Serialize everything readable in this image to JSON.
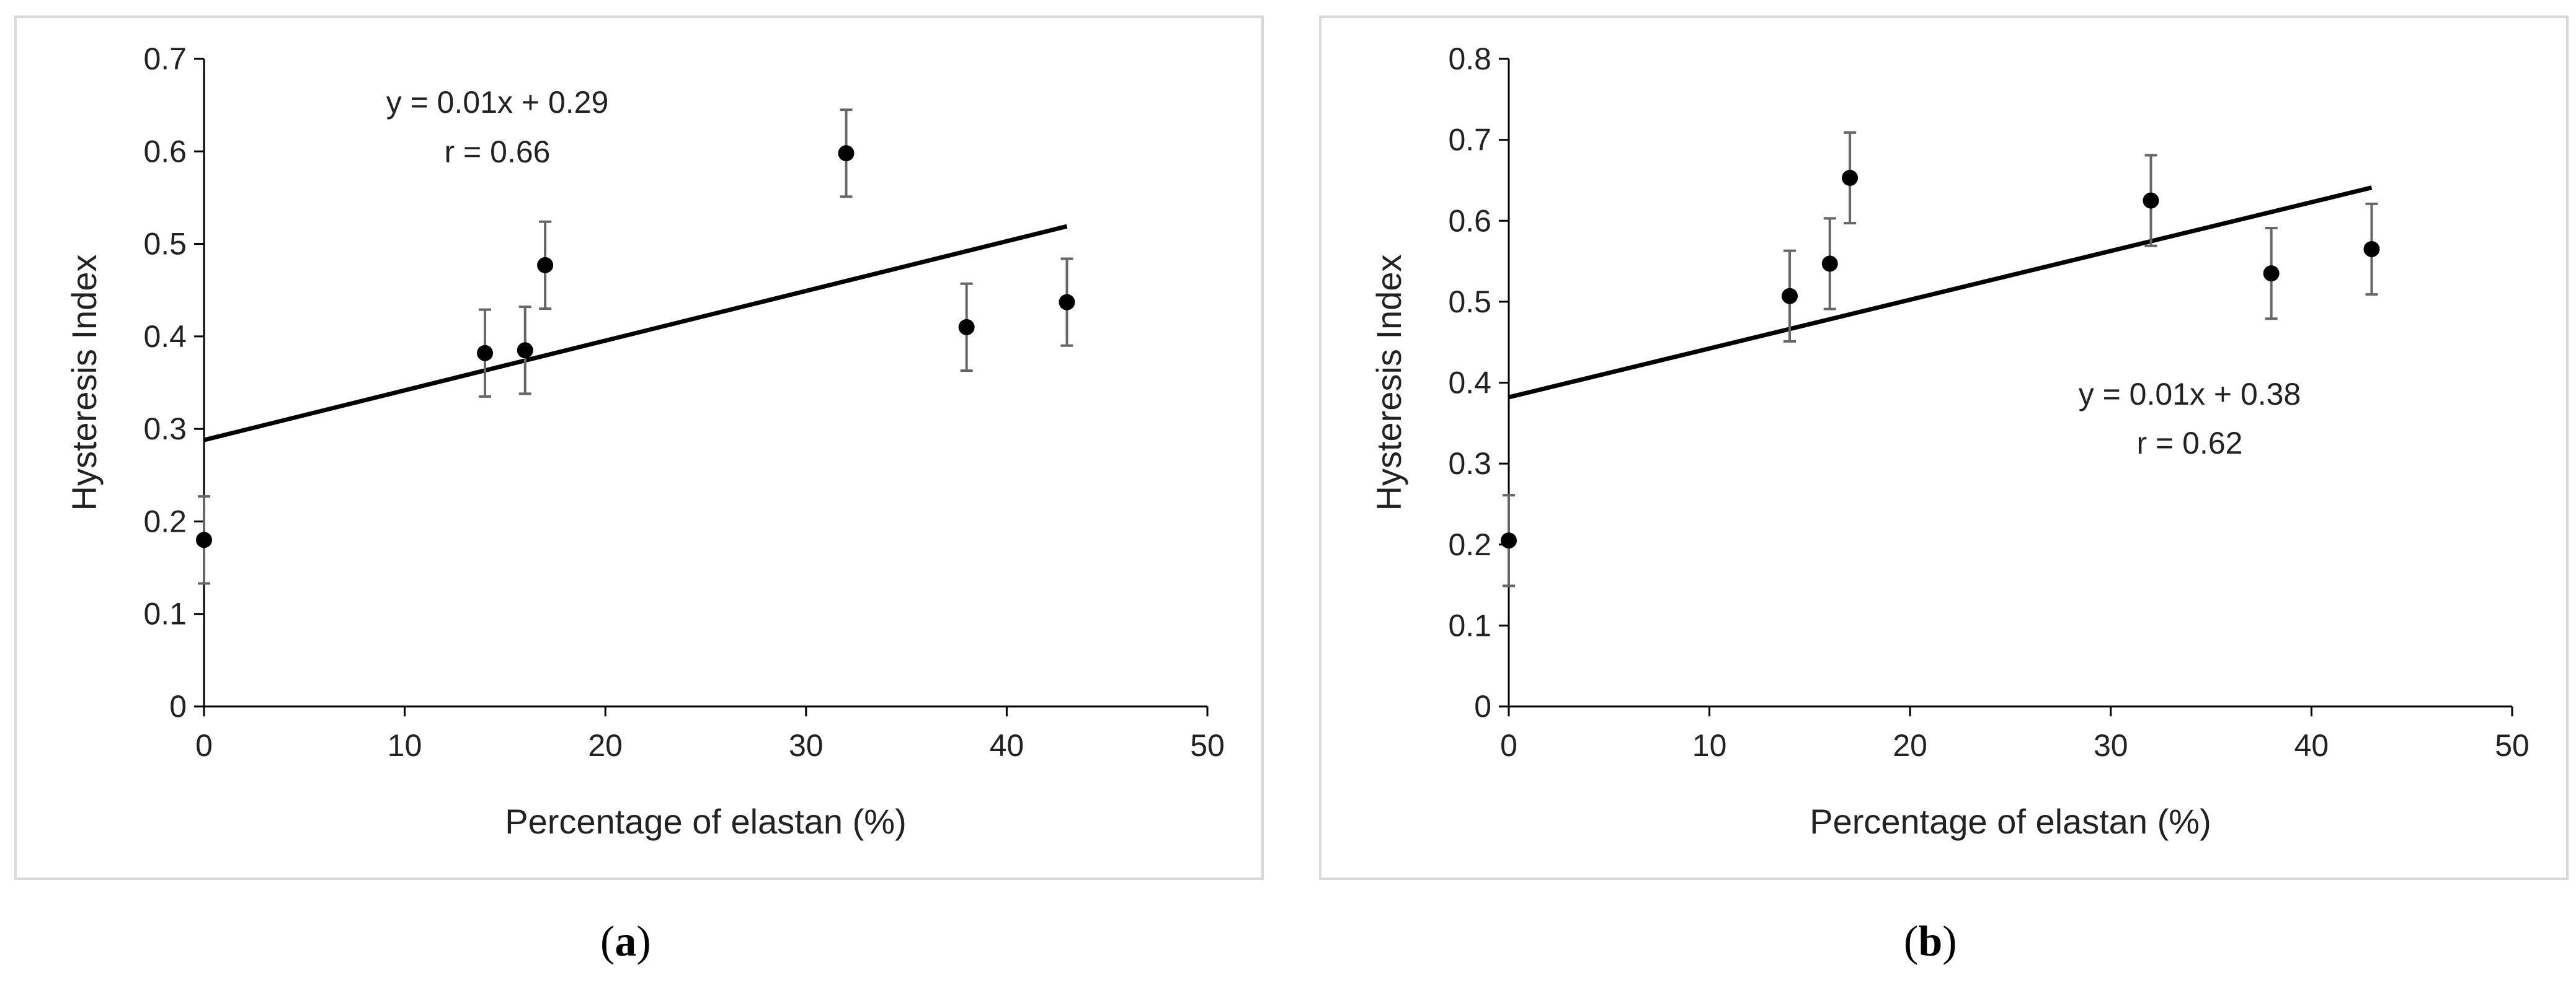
{
  "chart_data": [
    {
      "type": "scatter",
      "panel": "a",
      "xlabel": "Percentage of elastan (%)",
      "ylabel": "Hysteresis Index",
      "xlim": [
        0,
        50
      ],
      "ylim": [
        0,
        0.7
      ],
      "xticks": [
        "0",
        "10",
        "20",
        "30",
        "40",
        "50"
      ],
      "yticks": [
        "0",
        "0.1",
        "0.2",
        "0.3",
        "0.4",
        "0.5",
        "0.6",
        "0.7"
      ],
      "grid": false,
      "points": [
        {
          "x": 0,
          "y": 0.18,
          "err": 0.047
        },
        {
          "x": 14,
          "y": 0.382,
          "err": 0.047
        },
        {
          "x": 16,
          "y": 0.385,
          "err": 0.047
        },
        {
          "x": 17,
          "y": 0.477,
          "err": 0.047
        },
        {
          "x": 32,
          "y": 0.598,
          "err": 0.047
        },
        {
          "x": 38,
          "y": 0.41,
          "err": 0.047
        },
        {
          "x": 43,
          "y": 0.437,
          "err": 0.047
        }
      ],
      "trendline": {
        "x": [
          0,
          43
        ],
        "y": [
          0.288,
          0.519
        ]
      },
      "annotation": {
        "equation": "y = 0.01x + 0.29",
        "r": "r = 0.66"
      }
    },
    {
      "type": "scatter",
      "panel": "b",
      "xlabel": "Percentage of elastan (%)",
      "ylabel": "Hysteresis Index",
      "xlim": [
        0,
        50
      ],
      "ylim": [
        0,
        0.8
      ],
      "xticks": [
        "0",
        "10",
        "20",
        "30",
        "40",
        "50"
      ],
      "yticks": [
        "0",
        "0.1",
        "0.2",
        "0.3",
        "0.4",
        "0.5",
        "0.6",
        "0.7",
        "0.8"
      ],
      "grid": false,
      "points": [
        {
          "x": 0,
          "y": 0.205,
          "err": 0.056
        },
        {
          "x": 14,
          "y": 0.507,
          "err": 0.056
        },
        {
          "x": 16,
          "y": 0.547,
          "err": 0.056
        },
        {
          "x": 17,
          "y": 0.653,
          "err": 0.056
        },
        {
          "x": 32,
          "y": 0.625,
          "err": 0.056
        },
        {
          "x": 38,
          "y": 0.535,
          "err": 0.056
        },
        {
          "x": 43,
          "y": 0.565,
          "err": 0.056
        }
      ],
      "trendline": {
        "x": [
          0,
          43
        ],
        "y": [
          0.382,
          0.641
        ]
      },
      "annotation": {
        "equation": "y = 0.01x + 0.38",
        "r": "r = 0.62"
      }
    }
  ],
  "captions": {
    "a_open": "(",
    "a_letter": "a",
    "a_close": ")",
    "b_open": "(",
    "b_letter": "b",
    "b_close": ")"
  }
}
